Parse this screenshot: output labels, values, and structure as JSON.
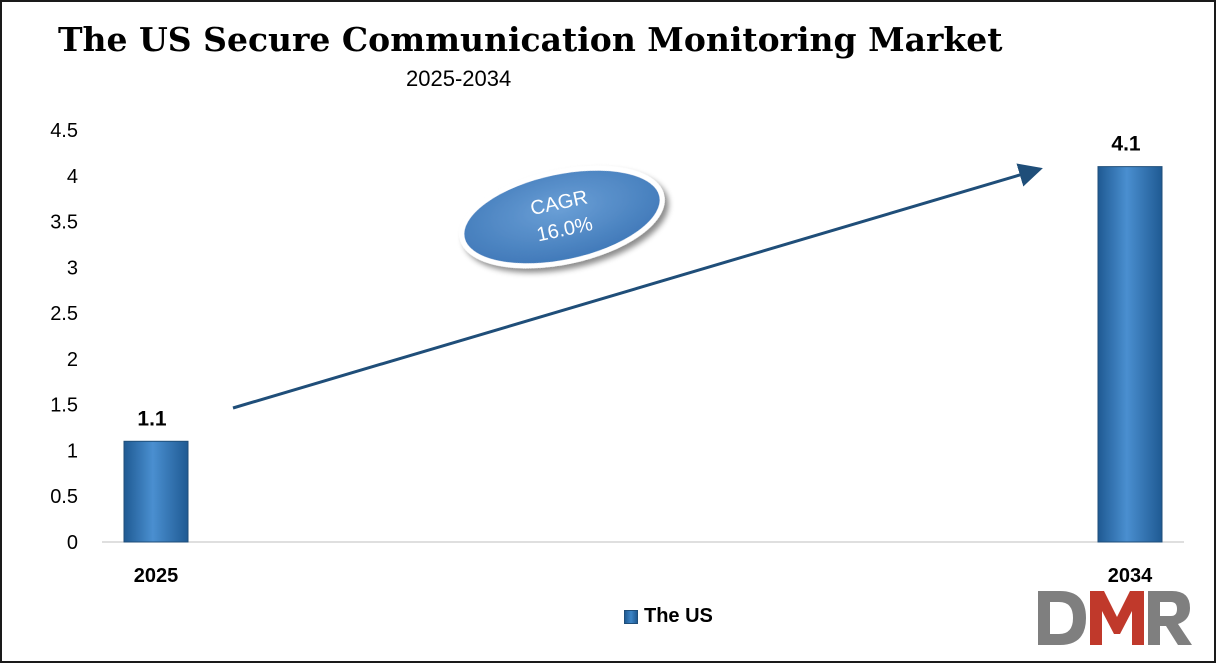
{
  "chart_data": {
    "type": "bar",
    "title": "The US Secure Communication Monitoring Market",
    "subtitle": "2025-2034",
    "categories": [
      "2025",
      "2034"
    ],
    "series": [
      {
        "name": "The US",
        "values": [
          1.1,
          4.1
        ]
      }
    ],
    "data_labels": [
      "1.1",
      "4.1"
    ],
    "ylim": [
      0,
      4.5
    ],
    "yticks": [
      "0",
      "0.5",
      "1",
      "1.5",
      "2",
      "2.5",
      "3",
      "3.5",
      "4",
      "4.5"
    ],
    "xlabel": "",
    "ylabel": "",
    "grid": false,
    "legend_position": "bottom",
    "annotation": {
      "line1": "CAGR",
      "line2": "16.0%"
    },
    "colors": {
      "bar": "#3a7fc3",
      "bar_dark": "#1f5a93",
      "arrow": "#1f4e79",
      "ellipse": "#4a86c5"
    }
  },
  "logo": {
    "text": "DMR",
    "colors": {
      "d": "#7f7f7f",
      "m": "#c0392b",
      "r": "#7f7f7f"
    }
  }
}
